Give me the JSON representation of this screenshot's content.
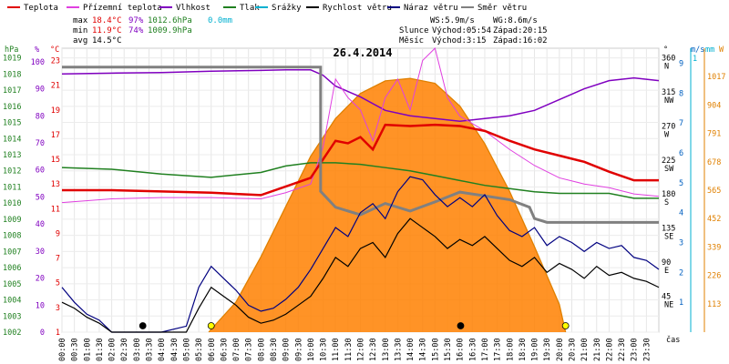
{
  "chart_data": {
    "type": "line",
    "title": "26.4.2014",
    "legend": [
      {
        "label": "Teplota",
        "color": "#e00000"
      },
      {
        "label": "Přízemní teplota",
        "color": "#e040e0"
      },
      {
        "label": "Vlhkost",
        "color": "#8000c0"
      },
      {
        "label": "Tlak",
        "color": "#208020"
      },
      {
        "label": "Srážky",
        "color": "#00b0d0"
      },
      {
        "label": "Rychlost větru",
        "color": "#000000"
      },
      {
        "label": "Náraz větru",
        "color": "#000080"
      },
      {
        "label": "Směr větru",
        "color": "#808080"
      }
    ],
    "stats": {
      "max": {
        "label": "max",
        "temp": "18.4°C",
        "hum": "97%",
        "press": "1012.6hPa",
        "rain": "0.0mm"
      },
      "min": {
        "label": "min",
        "temp": "11.9°C",
        "hum": "74%",
        "press": "1009.9hPa"
      },
      "avg": {
        "label": "avg",
        "temp": "14.5°C"
      }
    },
    "wind_info": {
      "ws": "WS:5.9m/s",
      "wg": "WG:8.6m/s"
    },
    "sun": {
      "label": "Slunce",
      "rise": "Východ:05:54",
      "set": "Západ:20:15"
    },
    "moon": {
      "label": "Měsíc",
      "rise": "Východ:3:15",
      "set": "Západ:16:02"
    },
    "axes": {
      "hpa": {
        "unit": "hPa",
        "ticks": [
          "1019",
          "1018",
          "1017",
          "1016",
          "1015",
          "1014",
          "1013",
          "1012",
          "1011",
          "1010",
          "1009",
          "1008",
          "1007",
          "1006",
          "1005",
          "1004",
          "1003",
          "1002"
        ],
        "range": [
          1002,
          1019.6
        ]
      },
      "pct": {
        "unit": "%",
        "ticks": [
          "100",
          "90",
          "80",
          "70",
          "60",
          "50",
          "40",
          "30",
          "20",
          "10",
          "0"
        ],
        "range": [
          0,
          105
        ]
      },
      "temp": {
        "unit": "°C",
        "ticks": [
          "23",
          "21",
          "19",
          "17",
          "15",
          "13",
          "11",
          "9",
          "7",
          "5",
          "3",
          "1"
        ],
        "range": [
          1,
          24
        ]
      },
      "dir": {
        "unit": "°",
        "ticks": [
          "360",
          "315",
          "270",
          "225",
          "180",
          "135",
          "90",
          "45"
        ],
        "labels": [
          "N",
          "NW",
          "W",
          "SW",
          "S",
          "SE",
          "E",
          "NE"
        ],
        "range": [
          0,
          375
        ]
      },
      "ms": {
        "unit": "m/s",
        "ticks": [
          "9",
          "8",
          "7",
          "6",
          "5",
          "4",
          "3",
          "2",
          "1"
        ],
        "range": [
          0,
          9.5
        ]
      },
      "mm": {
        "unit": "mm",
        "ticks": [
          "1"
        ]
      },
      "wm2": {
        "unit": "W",
        "ticks": [
          "1017",
          "904",
          "791",
          "678",
          "565",
          "452",
          "339",
          "226",
          "113"
        ]
      },
      "x": {
        "unit": "čas",
        "ticks": [
          "00:00",
          "00:30",
          "01:00",
          "01:30",
          "02:00",
          "02:30",
          "03:00",
          "03:30",
          "04:00",
          "04:30",
          "05:00",
          "05:30",
          "06:00",
          "06:30",
          "07:00",
          "07:30",
          "08:00",
          "08:30",
          "09:00",
          "09:30",
          "10:00",
          "10:30",
          "11:00",
          "11:30",
          "12:00",
          "12:30",
          "13:00",
          "13:30",
          "14:00",
          "14:30",
          "15:00",
          "15:30",
          "16:00",
          "16:30",
          "17:00",
          "17:30",
          "18:00",
          "18:30",
          "19:00",
          "19:30",
          "20:00",
          "20:30",
          "21:00",
          "21:30",
          "22:00",
          "22:30",
          "23:00",
          "23:30"
        ]
      }
    },
    "series": {
      "temperature": {
        "x": [
          0,
          2,
          4,
          6,
          8,
          9,
          10,
          10.5,
          11,
          11.5,
          12,
          12.5,
          13,
          14,
          15,
          16,
          17,
          18,
          19,
          20,
          21,
          22,
          23,
          24
        ],
        "y": [
          12.5,
          12.5,
          12.4,
          12.3,
          12.1,
          12.8,
          13.5,
          15,
          16.5,
          16.3,
          16.8,
          15.8,
          17.8,
          17.7,
          17.8,
          17.7,
          17.3,
          16.5,
          15.8,
          15.3,
          14.8,
          14,
          13.3,
          13.3
        ]
      },
      "ground_temperature": {
        "x": [
          0,
          2,
          4,
          6,
          8,
          9,
          10,
          10.5,
          11,
          11.5,
          12,
          12.5,
          13,
          13.5,
          14,
          14.5,
          15,
          15.5,
          16,
          17,
          18,
          19,
          20,
          21,
          22,
          23,
          24
        ],
        "y": [
          11.5,
          11.8,
          11.9,
          11.9,
          11.8,
          12.3,
          13,
          16,
          21.5,
          20,
          19,
          16.5,
          20,
          21.5,
          19,
          23,
          24,
          20,
          18.5,
          17.3,
          15.8,
          14.5,
          13.5,
          13,
          12.7,
          12.2,
          12
        ]
      },
      "humidity": {
        "x": [
          0,
          2,
          4,
          6,
          8,
          9,
          10,
          10.5,
          11,
          12,
          13,
          14,
          15,
          16,
          17,
          18,
          19,
          20,
          21,
          22,
          23,
          24
        ],
        "y": [
          95.5,
          95.8,
          96,
          96.5,
          96.8,
          97,
          97,
          95,
          91,
          87,
          82,
          80,
          79,
          78,
          79,
          80,
          82,
          86,
          90,
          93,
          94,
          93
        ]
      },
      "pressure": {
        "x": [
          0,
          2,
          4,
          6,
          8,
          9,
          10,
          11,
          12,
          13,
          14,
          15,
          16,
          17,
          18,
          19,
          20,
          21,
          22,
          23,
          24
        ],
        "y": [
          1012.2,
          1012.1,
          1011.8,
          1011.6,
          1011.9,
          1012.3,
          1012.5,
          1012.5,
          1012.4,
          1012.2,
          1012,
          1011.7,
          1011.4,
          1011.1,
          1010.9,
          1010.7,
          1010.6,
          1010.6,
          1010.6,
          1010.3,
          1010.3
        ]
      },
      "wind_direction": {
        "x": [
          0,
          10.4,
          10.4,
          11,
          12,
          13,
          14,
          15,
          16,
          17,
          18,
          18.8,
          19,
          19.5,
          20,
          21,
          22,
          23,
          24
        ],
        "y": [
          350,
          350,
          186,
          165,
          155,
          170,
          160,
          172,
          185,
          180,
          175,
          165,
          150,
          145,
          145,
          145,
          145,
          145,
          145
        ]
      },
      "solar_radiation": {
        "x": [
          5.9,
          7,
          8,
          9,
          10,
          11,
          12,
          13,
          14,
          15,
          16,
          17,
          18,
          19,
          20,
          20.25
        ],
        "y": [
          0,
          120,
          300,
          500,
          700,
          850,
          950,
          1000,
          1010,
          990,
          900,
          750,
          560,
          340,
          110,
          0
        ]
      },
      "wind_speed": {
        "x": [
          0,
          0.5,
          1,
          1.5,
          2,
          3,
          4,
          5,
          5.5,
          6,
          6.5,
          7,
          7.5,
          8,
          8.5,
          9,
          9.5,
          10,
          10.5,
          11,
          11.5,
          12,
          12.5,
          13,
          13.5,
          14,
          14.5,
          15,
          15.5,
          16,
          16.5,
          17,
          17.5,
          18,
          18.5,
          19,
          19.5,
          20,
          20.5,
          21,
          21.5,
          22,
          22.5,
          23,
          23.5,
          24
        ],
        "y": [
          1,
          0.8,
          0.5,
          0.3,
          0,
          0,
          0,
          0,
          0.8,
          1.5,
          1.2,
          0.9,
          0.5,
          0.3,
          0.4,
          0.6,
          0.9,
          1.2,
          1.8,
          2.5,
          2.2,
          2.8,
          3,
          2.5,
          3.3,
          3.8,
          3.5,
          3.2,
          2.8,
          3.1,
          2.9,
          3.2,
          2.8,
          2.4,
          2.2,
          2.5,
          2,
          2.3,
          2.1,
          1.8,
          2.2,
          1.9,
          2,
          1.8,
          1.7,
          1.5
        ]
      },
      "wind_gust": {
        "x": [
          0,
          0.5,
          1,
          1.5,
          2,
          3,
          4,
          5,
          5.5,
          6,
          6.5,
          7,
          7.5,
          8,
          8.5,
          9,
          9.5,
          10,
          10.5,
          11,
          11.5,
          12,
          12.5,
          13,
          13.5,
          14,
          14.5,
          15,
          15.5,
          16,
          16.5,
          17,
          17.5,
          18,
          18.5,
          19,
          19.5,
          20,
          20.5,
          21,
          21.5,
          22,
          22.5,
          23,
          23.5,
          24
        ],
        "y": [
          1.5,
          1,
          0.6,
          0.4,
          0,
          0,
          0,
          0.2,
          1.5,
          2.2,
          1.8,
          1.4,
          0.9,
          0.7,
          0.8,
          1.1,
          1.5,
          2.1,
          2.8,
          3.5,
          3.2,
          4,
          4.3,
          3.8,
          4.7,
          5.2,
          5.1,
          4.6,
          4.2,
          4.5,
          4.2,
          4.6,
          3.9,
          3.4,
          3.2,
          3.5,
          2.9,
          3.2,
          3,
          2.7,
          3,
          2.8,
          2.9,
          2.5,
          2.4,
          2.1
        ]
      }
    },
    "sun_events": [
      6,
      20.25
    ],
    "moon_events": [
      3.25,
      16.03
    ]
  }
}
